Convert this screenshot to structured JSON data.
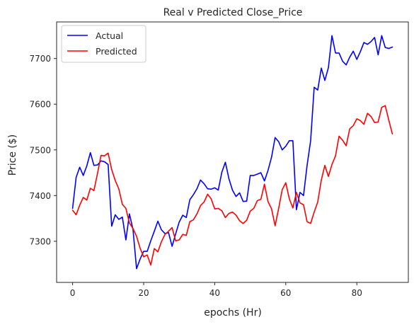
{
  "chart_data": {
    "type": "line",
    "title": "Real v Predicted Close_Price",
    "xlabel": "epochs (Hr)",
    "ylabel": "Price ($)",
    "xlim": [
      -4.5,
      94.5
    ],
    "ylim": [
      7210,
      7780
    ],
    "x_ticks": [
      0,
      20,
      40,
      60,
      80
    ],
    "y_ticks": [
      7300,
      7400,
      7500,
      7600,
      7700
    ],
    "grid": false,
    "legend_position": "top-left",
    "x": [
      0,
      1,
      2,
      3,
      4,
      5,
      6,
      7,
      8,
      9,
      10,
      11,
      12,
      13,
      14,
      15,
      16,
      17,
      18,
      19,
      20,
      21,
      22,
      23,
      24,
      25,
      26,
      27,
      28,
      29,
      30,
      31,
      32,
      33,
      34,
      35,
      36,
      37,
      38,
      39,
      40,
      41,
      42,
      43,
      44,
      45,
      46,
      47,
      48,
      49,
      50,
      51,
      52,
      53,
      54,
      55,
      56,
      57,
      58,
      59,
      60,
      61,
      62,
      63,
      64,
      65,
      66,
      67,
      68,
      69,
      70,
      71,
      72,
      73,
      74,
      75,
      76,
      77,
      78,
      79,
      80,
      81,
      82,
      83,
      84,
      85,
      86,
      87,
      88,
      89,
      90
    ],
    "series": [
      {
        "name": "Actual",
        "color": "#0000ff",
        "values": [
          7372,
          7440,
          7462,
          7444,
          7465,
          7494,
          7466,
          7467,
          7476,
          7474,
          7468,
          7333,
          7358,
          7348,
          7353,
          7303,
          7360,
          7326,
          7240,
          7261,
          7278,
          7278,
          7301,
          7322,
          7344,
          7325,
          7317,
          7319,
          7289,
          7316,
          7342,
          7357,
          7352,
          7391,
          7402,
          7415,
          7434,
          7426,
          7415,
          7414,
          7417,
          7412,
          7451,
          7473,
          7437,
          7412,
          7398,
          7406,
          7387,
          7388,
          7444,
          7444,
          7447,
          7450,
          7432,
          7455,
          7484,
          7527,
          7518,
          7500,
          7508,
          7520,
          7520,
          7369,
          7407,
          7400,
          7466,
          7520,
          7637,
          7631,
          7679,
          7652,
          7680,
          7750,
          7712,
          7712,
          7694,
          7686,
          7703,
          7716,
          7698,
          7715,
          7735,
          7731,
          7737,
          7746,
          7708,
          7750,
          7724,
          7722,
          7725
        ]
      },
      {
        "name": "Predicted",
        "color": "#ff0000",
        "values": [
          7368,
          7358,
          7379,
          7396,
          7390,
          7416,
          7411,
          7448,
          7488,
          7487,
          7493,
          7457,
          7433,
          7415,
          7381,
          7372,
          7340,
          7328,
          7311,
          7285,
          7266,
          7270,
          7248,
          7284,
          7277,
          7299,
          7315,
          7322,
          7330,
          7301,
          7303,
          7315,
          7313,
          7343,
          7347,
          7360,
          7378,
          7386,
          7403,
          7393,
          7371,
          7372,
          7367,
          7352,
          7361,
          7364,
          7357,
          7345,
          7339,
          7346,
          7366,
          7372,
          7389,
          7392,
          7425,
          7387,
          7371,
          7334,
          7372,
          7413,
          7428,
          7393,
          7373,
          7407,
          7384,
          7380,
          7343,
          7339,
          7364,
          7386,
          7434,
          7466,
          7442,
          7468,
          7487,
          7530,
          7521,
          7509,
          7546,
          7553,
          7568,
          7564,
          7556,
          7580,
          7573,
          7560,
          7561,
          7593,
          7597,
          7565,
          7535
        ]
      }
    ]
  }
}
